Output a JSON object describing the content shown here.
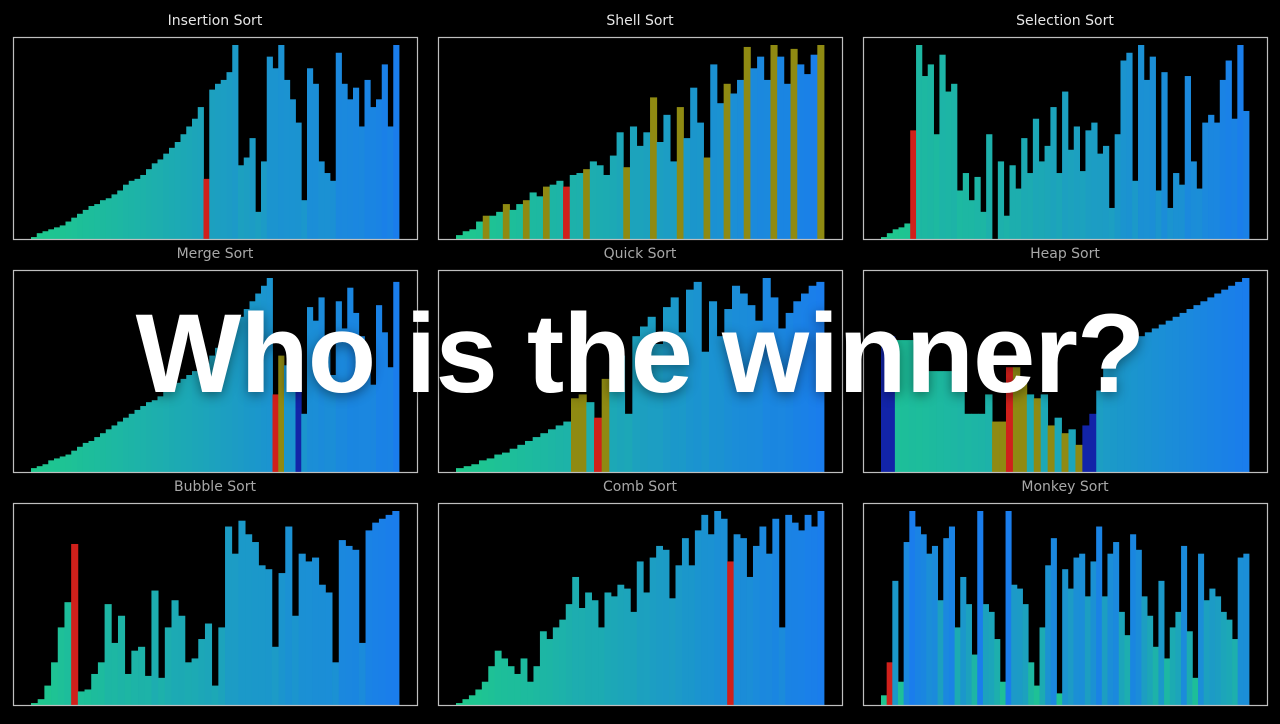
{
  "overlay_text": "Who is the winner?",
  "colors": {
    "background": "#000000",
    "frame": "#bfbfbf",
    "title_active": "#e6e6e6",
    "title_dim": "#a8a8a8",
    "bar_low": "#1ec98c",
    "bar_high": "#1a7dec",
    "compare": "#d0201b",
    "merge_aux": "#8f8a12",
    "heap_aux": "#1224a8"
  },
  "chart_data": [
    {
      "type": "bar",
      "title": "Insertion Sort",
      "title_state": "active",
      "gradient": "sorted",
      "values": [
        1,
        3,
        4,
        5,
        6,
        7,
        9,
        11,
        13,
        15,
        17,
        18,
        20,
        21,
        23,
        25,
        28,
        30,
        31,
        33,
        36,
        39,
        41,
        44,
        47,
        50,
        54,
        58,
        62,
        68,
        31,
        77,
        80,
        82,
        86,
        100,
        38,
        42,
        52,
        14,
        40,
        94,
        88,
        100,
        82,
        72,
        60,
        20,
        88,
        80,
        40,
        34,
        30,
        96,
        80,
        72,
        78,
        58,
        82,
        68,
        72,
        90,
        58,
        100
      ],
      "highlights": [
        {
          "index": 30,
          "color": "compare"
        }
      ],
      "ylim": [
        0,
        100
      ]
    },
    {
      "type": "bar",
      "title": "Shell Sort",
      "title_state": "active",
      "gradient": "sorted",
      "values": [
        2,
        4,
        5,
        9,
        12,
        12,
        14,
        18,
        15,
        18,
        20,
        24,
        22,
        27,
        28,
        30,
        27,
        33,
        34,
        36,
        40,
        38,
        33,
        43,
        55,
        37,
        58,
        48,
        55,
        73,
        50,
        64,
        40,
        68,
        52,
        78,
        60,
        42,
        90,
        70,
        80,
        75,
        82,
        99,
        88,
        94,
        82,
        100,
        94,
        80,
        98,
        90,
        85,
        95,
        100
      ],
      "highlights": [
        {
          "index": 16,
          "color": "compare"
        },
        {
          "index": 4,
          "color": "merge_aux"
        },
        {
          "index": 7,
          "color": "merge_aux"
        },
        {
          "index": 10,
          "color": "merge_aux"
        },
        {
          "index": 13,
          "color": "merge_aux"
        },
        {
          "index": 19,
          "color": "merge_aux"
        },
        {
          "index": 25,
          "color": "merge_aux"
        },
        {
          "index": 29,
          "color": "merge_aux"
        },
        {
          "index": 33,
          "color": "merge_aux"
        },
        {
          "index": 37,
          "color": "merge_aux"
        },
        {
          "index": 40,
          "color": "merge_aux"
        },
        {
          "index": 43,
          "color": "merge_aux"
        },
        {
          "index": 47,
          "color": "merge_aux"
        },
        {
          "index": 50,
          "color": "merge_aux"
        },
        {
          "index": 54,
          "color": "merge_aux"
        }
      ],
      "ylim": [
        0,
        100
      ]
    },
    {
      "type": "bar",
      "title": "Selection Sort",
      "title_state": "active",
      "gradient": "sorted",
      "values": [
        1,
        3,
        5,
        6,
        8,
        56,
        100,
        84,
        90,
        54,
        95,
        76,
        80,
        25,
        34,
        20,
        32,
        14,
        54,
        0,
        40,
        12,
        38,
        26,
        52,
        34,
        62,
        40,
        48,
        68,
        34,
        76,
        46,
        58,
        35,
        56,
        60,
        44,
        48,
        16,
        54,
        92,
        96,
        30,
        100,
        82,
        94,
        25,
        86,
        16,
        34,
        28,
        84,
        40,
        26,
        60,
        64,
        60,
        82,
        92,
        62,
        100,
        66
      ],
      "highlights": [
        {
          "index": 5,
          "color": "compare"
        }
      ],
      "ylim": [
        0,
        100
      ]
    },
    {
      "type": "bar",
      "title": "Merge Sort",
      "title_state": "dim",
      "gradient": "sorted",
      "values": [
        2,
        3,
        4,
        6,
        7,
        8,
        9,
        11,
        13,
        15,
        16,
        18,
        20,
        22,
        24,
        26,
        28,
        30,
        32,
        34,
        36,
        37,
        39,
        42,
        44,
        46,
        48,
        50,
        52,
        54,
        56,
        60,
        64,
        68,
        72,
        76,
        80,
        84,
        88,
        92,
        96,
        100,
        40,
        60,
        55,
        70,
        45,
        30,
        85,
        78,
        90,
        65,
        50,
        88,
        74,
        95,
        82,
        70,
        60,
        45,
        86,
        72,
        54,
        98
      ],
      "highlights": [
        {
          "index": 42,
          "color": "compare"
        },
        {
          "index": 43,
          "color": "merge_aux"
        },
        {
          "index": 46,
          "color": "heap_aux"
        }
      ],
      "ylim": [
        0,
        100
      ]
    },
    {
      "type": "bar",
      "title": "Quick Sort",
      "title_state": "dim",
      "gradient": "sorted",
      "values": [
        2,
        3,
        4,
        6,
        7,
        9,
        10,
        12,
        14,
        16,
        18,
        20,
        22,
        24,
        26,
        38,
        40,
        36,
        28,
        48,
        52,
        60,
        30,
        70,
        75,
        80,
        66,
        85,
        90,
        72,
        94,
        98,
        62,
        88,
        70,
        84,
        96,
        92,
        86,
        78,
        100,
        90,
        74,
        82,
        88,
        92,
        96,
        98
      ],
      "highlights": [
        {
          "index": 18,
          "color": "compare"
        },
        {
          "index": 15,
          "color": "merge_aux"
        },
        {
          "index": 16,
          "color": "merge_aux"
        },
        {
          "index": 19,
          "color": "merge_aux"
        }
      ],
      "ylim": [
        0,
        100
      ]
    },
    {
      "type": "bar",
      "title": "Heap Sort",
      "title_state": "dim",
      "gradient": "sorted",
      "values": [
        70,
        70,
        68,
        68,
        68,
        52,
        52,
        52,
        52,
        52,
        52,
        52,
        30,
        30,
        30,
        40,
        26,
        26,
        54,
        54,
        46,
        40,
        38,
        40,
        24,
        28,
        20,
        22,
        14,
        24,
        30,
        42,
        58,
        62,
        64,
        66,
        68,
        70,
        72,
        74,
        76,
        78,
        80,
        82,
        84,
        86,
        88,
        90,
        92,
        94,
        96,
        98,
        100
      ],
      "highlights": [
        {
          "index": 0,
          "color": "heap_aux"
        },
        {
          "index": 1,
          "color": "heap_aux"
        },
        {
          "index": 18,
          "color": "compare"
        },
        {
          "index": 16,
          "color": "merge_aux"
        },
        {
          "index": 17,
          "color": "merge_aux"
        },
        {
          "index": 19,
          "color": "merge_aux"
        },
        {
          "index": 20,
          "color": "merge_aux"
        },
        {
          "index": 22,
          "color": "merge_aux"
        },
        {
          "index": 24,
          "color": "merge_aux"
        },
        {
          "index": 26,
          "color": "merge_aux"
        },
        {
          "index": 28,
          "color": "merge_aux"
        },
        {
          "index": 29,
          "color": "heap_aux"
        },
        {
          "index": 30,
          "color": "heap_aux"
        }
      ],
      "ylim": [
        0,
        100
      ]
    },
    {
      "type": "bar",
      "title": "Bubble Sort",
      "title_state": "dim",
      "gradient": "sorted",
      "values": [
        1,
        3,
        10,
        22,
        40,
        53,
        83,
        7,
        8,
        16,
        22,
        52,
        32,
        46,
        16,
        28,
        30,
        15,
        59,
        14,
        40,
        54,
        46,
        22,
        24,
        34,
        42,
        10,
        40,
        92,
        78,
        95,
        88,
        84,
        72,
        70,
        30,
        68,
        92,
        46,
        78,
        74,
        76,
        62,
        58,
        22,
        85,
        82,
        80,
        32,
        90,
        94,
        96,
        98,
        100
      ],
      "highlights": [
        {
          "index": 6,
          "color": "compare"
        }
      ],
      "ylim": [
        0,
        100
      ]
    },
    {
      "type": "bar",
      "title": "Comb Sort",
      "title_state": "dim",
      "gradient": "sorted",
      "values": [
        1,
        3,
        5,
        8,
        12,
        20,
        28,
        24,
        20,
        16,
        24,
        12,
        20,
        38,
        34,
        40,
        44,
        52,
        66,
        50,
        58,
        54,
        40,
        58,
        56,
        62,
        60,
        48,
        74,
        58,
        76,
        82,
        80,
        55,
        72,
        86,
        72,
        90,
        98,
        88,
        100,
        96,
        74,
        88,
        86,
        66,
        82,
        92,
        78,
        96,
        40,
        98,
        94,
        90,
        98,
        92,
        100
      ],
      "highlights": [
        {
          "index": 42,
          "color": "compare"
        }
      ],
      "ylim": [
        0,
        100
      ]
    },
    {
      "type": "bar",
      "title": "Monkey Sort",
      "title_state": "dim",
      "gradient": "value",
      "values": [
        5,
        22,
        64,
        12,
        84,
        100,
        92,
        88,
        78,
        82,
        54,
        86,
        92,
        40,
        66,
        52,
        26,
        100,
        52,
        48,
        34,
        12,
        100,
        62,
        60,
        52,
        22,
        10,
        40,
        72,
        86,
        6,
        70,
        60,
        76,
        78,
        56,
        74,
        92,
        56,
        78,
        84,
        48,
        36,
        88,
        80,
        56,
        46,
        30,
        64,
        24,
        40,
        48,
        82,
        38,
        14,
        78,
        54,
        60,
        56,
        48,
        44,
        34,
        76,
        78
      ],
      "highlights": [
        {
          "index": 1,
          "color": "compare"
        }
      ],
      "ylim": [
        0,
        100
      ]
    }
  ]
}
